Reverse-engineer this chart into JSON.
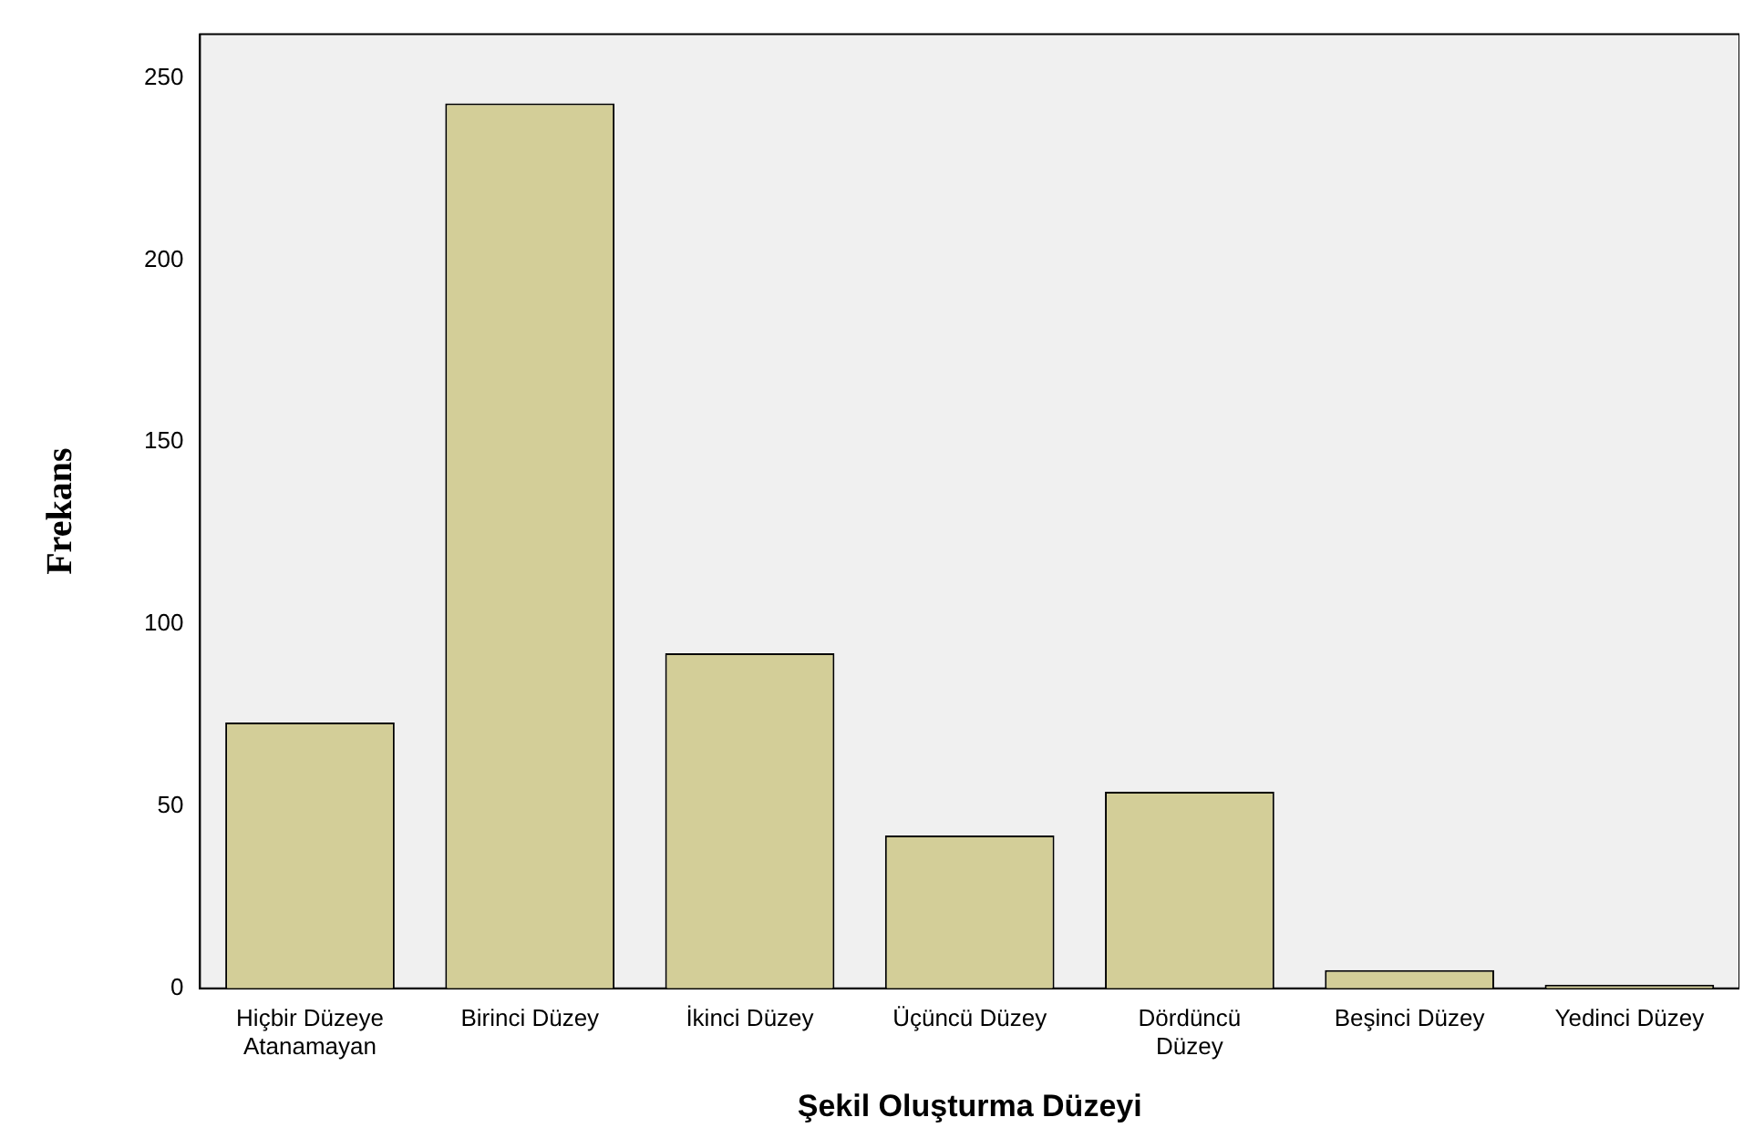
{
  "chart_data": {
    "type": "bar",
    "xlabel": "Şekil Oluşturma Düzeyi",
    "ylabel": "Frekans",
    "categories": [
      "Hiçbir Düzeye\nAtanamayan",
      "Birinci Düzey",
      "İkinci Düzey",
      "Üçüncü Düzey",
      "Dördüncü\nDüzey",
      "Beşinci Düzey",
      "Yedinci Düzey"
    ],
    "values": [
      73,
      243,
      92,
      42,
      54,
      5,
      1
    ],
    "color": "#d3ce98",
    "ylim": [
      0,
      262
    ],
    "yticks": [
      0,
      50,
      100,
      150,
      200,
      250
    ],
    "grid": false,
    "legend": false
  }
}
